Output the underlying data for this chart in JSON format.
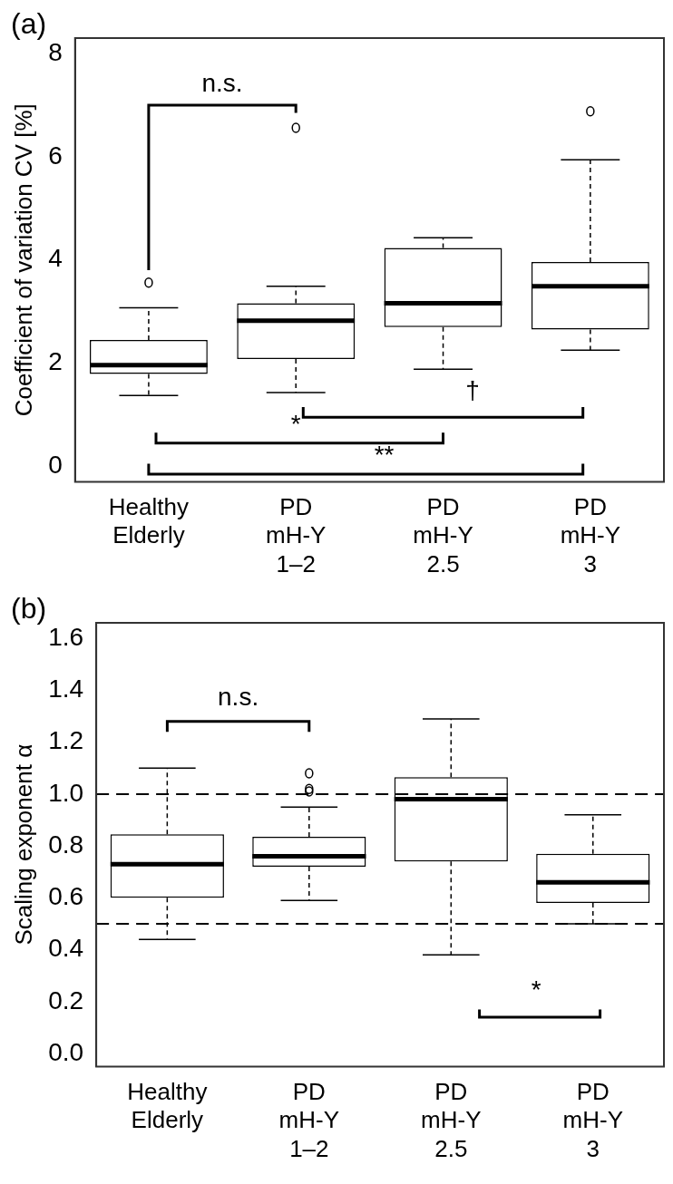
{
  "chart_data": [
    {
      "type": "box",
      "title": "(a)",
      "ylabel": "Coefficient of variation CV [%]",
      "categories": [
        "Healthy Elderly",
        "PD mH-Y 1–2",
        "PD mH-Y 2.5",
        "PD mH-Y 3"
      ],
      "boxes": [
        {
          "low": 1.37,
          "q1": 1.79,
          "median": 1.96,
          "q3": 2.45,
          "high": 3.07,
          "outliers": [
            3.56
          ]
        },
        {
          "low": 1.43,
          "q1": 2.08,
          "median": 2.82,
          "q3": 3.16,
          "high": 3.49,
          "outliers": [
            6.56
          ]
        },
        {
          "low": 1.88,
          "q1": 2.7,
          "median": 3.16,
          "q3": 4.23,
          "high": 4.43
        },
        {
          "low": 2.25,
          "q1": 2.65,
          "median": 3.49,
          "q3": 3.96,
          "high": 5.94,
          "outliers": [
            6.88
          ]
        }
      ],
      "ylim": [
        -0.3,
        8.3
      ],
      "yticks": [
        0,
        2,
        4,
        6,
        8
      ],
      "grid": false,
      "annotations": [
        "n.s.",
        "†",
        "*",
        "**"
      ]
    },
    {
      "type": "box",
      "title": "(b)",
      "ylabel": "Scaling exponent α",
      "categories": [
        "Healthy Elderly",
        "PD mH-Y 1–2",
        "PD mH-Y 2.5",
        "PD mH-Y 3"
      ],
      "boxes": [
        {
          "low": 0.44,
          "q1": 0.6,
          "median": 0.73,
          "q3": 0.845,
          "high": 1.1
        },
        {
          "low": 0.59,
          "q1": 0.72,
          "median": 0.76,
          "q3": 0.835,
          "high": 0.95,
          "outliers": [
            1.08,
            1.02,
            1.01
          ]
        },
        {
          "low": 0.38,
          "q1": 0.74,
          "median": 0.98,
          "q3": 1.065,
          "high": 1.29
        },
        {
          "low": 0.5,
          "q1": 0.58,
          "median": 0.66,
          "q3": 0.77,
          "high": 0.92
        }
      ],
      "ylim": [
        -0.05,
        1.66
      ],
      "yticks": [
        {
          "value": 0,
          "label": "0.0"
        },
        {
          "value": 0.2,
          "label": "0.2"
        },
        {
          "value": 0.4,
          "label": "0.4"
        },
        {
          "value": 0.6,
          "label": "0.6"
        },
        {
          "value": 0.8,
          "label": "0.8"
        },
        {
          "value": 1,
          "label": "1.0"
        },
        {
          "value": 1.2,
          "label": "1.2"
        },
        {
          "value": 1.4,
          "label": "1.4"
        },
        {
          "value": 1.6,
          "label": "1.6"
        }
      ],
      "grid": false,
      "ref_lines": [
        {
          "axis": "y",
          "value": 1,
          "line_style": "dashed"
        },
        {
          "axis": "y",
          "value": 0.5,
          "line_style": "dashed"
        }
      ],
      "annotations": [
        "n.s.",
        "*"
      ]
    }
  ]
}
